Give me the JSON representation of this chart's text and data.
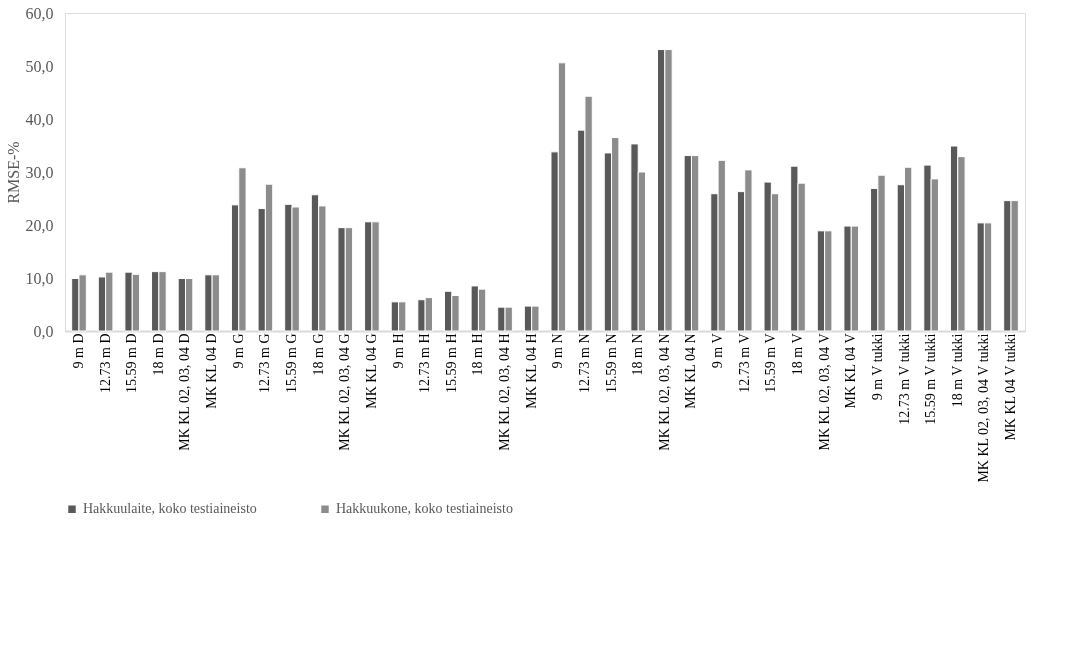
{
  "chart_data": {
    "type": "bar",
    "ylabel": "RMSE-%",
    "categories": [
      "9 m D",
      "12.73 m D",
      "15.59 m D",
      "18 m D",
      "MK KL 02, 03, 04 D",
      "MK KL 04 D",
      "9 m G",
      "12.73 m G",
      "15.59 m G",
      "18 m G",
      "MK KL 02, 03, 04 G",
      "MK KL 04 G",
      "9 m H",
      "12.73 m H",
      "15.59 m H",
      "18 m H",
      "MK KL 02, 03, 04 H",
      "MK KL 04 H",
      "9 m N",
      "12.73 m N",
      "15.59 m N",
      "18 m N",
      "MK KL 02, 03, 04 N",
      "MK KL 04 N",
      "9 m V",
      "12.73 m V",
      "15.59 m V",
      "18 m V",
      "MK KL 02, 03, 04 V",
      "MK KL 04 V",
      "9 m V tukki",
      "12.73 m V tukki",
      "15.59 m V tukki",
      "18 m V tukki",
      "MK KL 02, 03, 04 V tukki",
      "MK KL 04 V tukki"
    ],
    "series": [
      {
        "name": "Hakkuulaite, koko testiaineisto",
        "color": "#595959",
        "values": [
          9.9,
          10.2,
          11.1,
          11.2,
          9.9,
          10.6,
          23.8,
          23.1,
          23.9,
          25.7,
          19.5,
          20.6,
          5.5,
          5.9,
          7.5,
          8.5,
          4.5,
          4.7,
          33.8,
          37.9,
          33.6,
          35.3,
          53.1,
          33.1,
          25.9,
          26.3,
          28.1,
          31.1,
          18.9,
          19.8,
          26.9,
          27.6,
          31.3,
          34.9,
          20.4,
          24.6
        ]
      },
      {
        "name": "Hakkuukone, koko testiaineisto",
        "color": "#8c8c8c",
        "values": [
          10.6,
          11.1,
          10.7,
          11.2,
          9.9,
          10.6,
          30.8,
          27.7,
          23.4,
          23.6,
          19.5,
          20.6,
          5.5,
          6.3,
          6.7,
          7.9,
          4.5,
          4.7,
          50.6,
          44.3,
          36.5,
          30.0,
          53.1,
          33.1,
          32.2,
          30.4,
          25.9,
          27.9,
          18.9,
          19.8,
          29.4,
          30.9,
          28.7,
          32.9,
          20.4,
          24.6
        ]
      }
    ],
    "ylim": [
      0,
      60
    ],
    "yticks": [
      {
        "value": 0,
        "label": "0,0"
      },
      {
        "value": 10,
        "label": "10,0"
      },
      {
        "value": 20,
        "label": "20,0"
      },
      {
        "value": 30,
        "label": "30,0"
      },
      {
        "value": 40,
        "label": "40,0"
      },
      {
        "value": 50,
        "label": "50,0"
      },
      {
        "value": 60,
        "label": "60,0"
      }
    ],
    "grid": false,
    "legend": "bottom"
  }
}
